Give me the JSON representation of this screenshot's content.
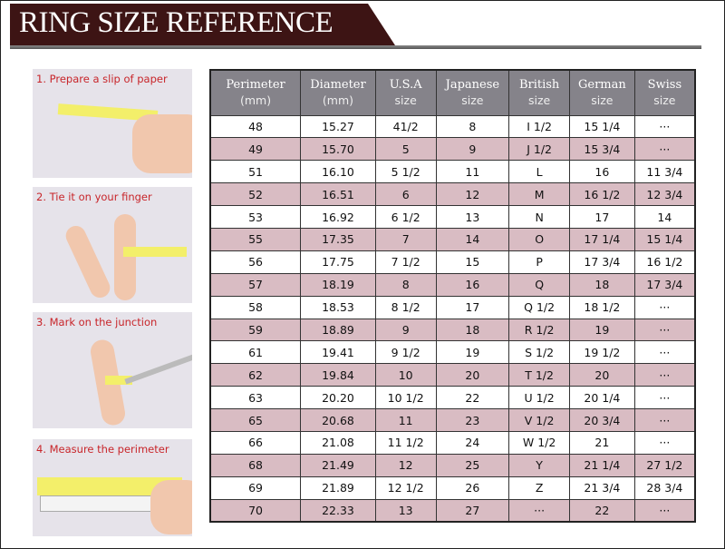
{
  "title": "RING SIZE REFERENCE",
  "colors": {
    "banner": "#3d1414",
    "header": "#85838a",
    "alt_row": "#d9bcc3",
    "step_label": "#c8252a"
  },
  "steps": [
    "1. Prepare a slip of paper",
    "2. Tie it on your finger",
    "3. Mark on the junction",
    "4. Measure the perimeter"
  ],
  "table": {
    "headers": [
      [
        "Perimeter",
        "(mm)"
      ],
      [
        "Diameter",
        "(mm)"
      ],
      [
        "U.S.A",
        "size"
      ],
      [
        "Japanese",
        "size"
      ],
      [
        "British",
        "size"
      ],
      [
        "German",
        "size"
      ],
      [
        "Swiss",
        "size"
      ]
    ],
    "rows": [
      [
        "48",
        "15.27",
        "41/2",
        "8",
        "I 1/2",
        "15 1/4",
        "···"
      ],
      [
        "49",
        "15.70",
        "5",
        "9",
        "J 1/2",
        "15 3/4",
        "···"
      ],
      [
        "51",
        "16.10",
        "5 1/2",
        "11",
        "L",
        "16",
        "11 3/4"
      ],
      [
        "52",
        "16.51",
        "6",
        "12",
        "M",
        "16 1/2",
        "12 3/4"
      ],
      [
        "53",
        "16.92",
        "6 1/2",
        "13",
        "N",
        "17",
        "14"
      ],
      [
        "55",
        "17.35",
        "7",
        "14",
        "O",
        "17 1/4",
        "15 1/4"
      ],
      [
        "56",
        "17.75",
        "7 1/2",
        "15",
        "P",
        "17 3/4",
        "16 1/2"
      ],
      [
        "57",
        "18.19",
        "8",
        "16",
        "Q",
        "18",
        "17 3/4"
      ],
      [
        "58",
        "18.53",
        "8 1/2",
        "17",
        "Q  1/2",
        "18 1/2",
        "···"
      ],
      [
        "59",
        "18.89",
        "9",
        "18",
        "R 1/2",
        "19",
        "···"
      ],
      [
        "61",
        "19.41",
        "9 1/2",
        "19",
        "S 1/2",
        "19 1/2",
        "···"
      ],
      [
        "62",
        "19.84",
        "10",
        "20",
        "T 1/2",
        "20",
        "···"
      ],
      [
        "63",
        "20.20",
        "10 1/2",
        "22",
        "U 1/2",
        "20 1/4",
        "···"
      ],
      [
        "65",
        "20.68",
        "11",
        "23",
        "V 1/2",
        "20 3/4",
        "···"
      ],
      [
        "66",
        "21.08",
        "11 1/2",
        "24",
        "W 1/2",
        "21",
        "···"
      ],
      [
        "68",
        "21.49",
        "12",
        "25",
        "Y",
        "21 1/4",
        "27 1/2"
      ],
      [
        "69",
        "21.89",
        "12 1/2",
        "26",
        "Z",
        "21 3/4",
        "28 3/4"
      ],
      [
        "70",
        "22.33",
        "13",
        "27",
        "···",
        "22",
        "···"
      ]
    ]
  }
}
